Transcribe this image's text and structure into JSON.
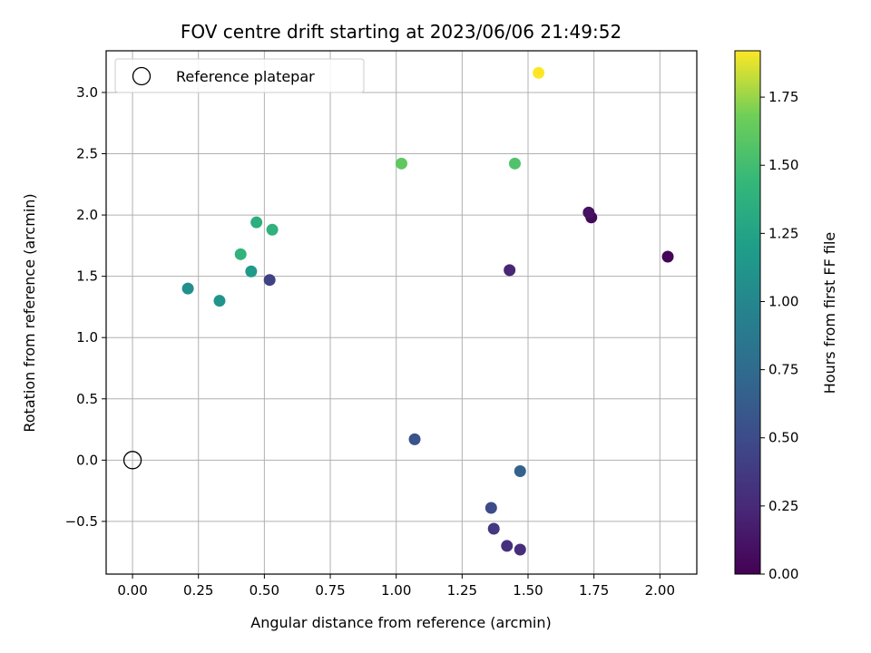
{
  "chart_data": {
    "type": "scatter",
    "title": "FOV centre drift starting at 2023/06/06 21:49:52",
    "xlabel": "Angular distance from reference (arcmin)",
    "ylabel": "Rotation from reference (arcmin)",
    "xlim": [
      -0.1,
      2.14
    ],
    "ylim": [
      -0.93,
      3.34
    ],
    "xticks": [
      0.0,
      0.25,
      0.5,
      0.75,
      1.0,
      1.25,
      1.5,
      1.75,
      2.0
    ],
    "xtick_labels": [
      "0.00",
      "0.25",
      "0.50",
      "0.75",
      "1.00",
      "1.25",
      "1.50",
      "1.75",
      "2.00"
    ],
    "yticks": [
      -0.5,
      0.0,
      0.5,
      1.0,
      1.5,
      2.0,
      2.5,
      3.0
    ],
    "ytick_labels": [
      "−0.5",
      "0.0",
      "0.5",
      "1.0",
      "1.5",
      "2.0",
      "2.5",
      "3.0"
    ],
    "grid": true,
    "legend": {
      "placement": "top-left",
      "entries": [
        "Reference platepar"
      ]
    },
    "reference_point": {
      "x": 0.0,
      "y": 0.0,
      "label": "Reference platepar"
    },
    "colorbar": {
      "label": "Hours from first FF file",
      "colormap": "viridis",
      "range": [
        0.0,
        1.92
      ],
      "ticks": [
        0.0,
        0.25,
        0.5,
        0.75,
        1.0,
        1.25,
        1.5,
        1.75
      ],
      "tick_labels": [
        "0.00",
        "0.25",
        "0.50",
        "0.75",
        "1.00",
        "1.25",
        "1.50",
        "1.75"
      ]
    },
    "points": [
      {
        "x": 2.03,
        "y": 1.66,
        "hours": 0.02
      },
      {
        "x": 1.74,
        "y": 1.98,
        "hours": 0.05
      },
      {
        "x": 1.73,
        "y": 2.02,
        "hours": 0.1
      },
      {
        "x": 1.43,
        "y": 1.55,
        "hours": 0.22
      },
      {
        "x": 1.47,
        "y": -0.73,
        "hours": 0.28
      },
      {
        "x": 1.42,
        "y": -0.7,
        "hours": 0.3
      },
      {
        "x": 1.37,
        "y": -0.56,
        "hours": 0.36
      },
      {
        "x": 0.52,
        "y": 1.47,
        "hours": 0.42
      },
      {
        "x": 1.36,
        "y": -0.39,
        "hours": 0.5
      },
      {
        "x": 1.07,
        "y": 0.17,
        "hours": 0.56
      },
      {
        "x": 1.47,
        "y": -0.09,
        "hours": 0.68
      },
      {
        "x": 0.21,
        "y": 1.4,
        "hours": 1.07
      },
      {
        "x": 0.33,
        "y": 1.3,
        "hours": 1.12
      },
      {
        "x": 0.45,
        "y": 1.54,
        "hours": 1.17
      },
      {
        "x": 0.47,
        "y": 1.94,
        "hours": 1.35
      },
      {
        "x": 0.53,
        "y": 1.88,
        "hours": 1.38
      },
      {
        "x": 0.41,
        "y": 1.68,
        "hours": 1.4
      },
      {
        "x": 1.45,
        "y": 2.42,
        "hours": 1.55
      },
      {
        "x": 1.02,
        "y": 2.42,
        "hours": 1.62
      },
      {
        "x": 1.54,
        "y": 3.16,
        "hours": 1.92
      }
    ]
  }
}
